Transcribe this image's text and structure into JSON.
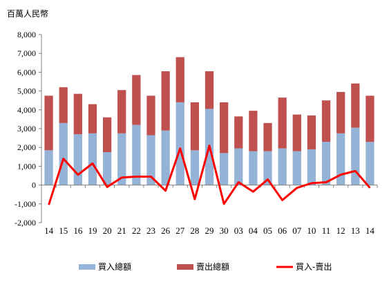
{
  "chart_data": {
    "type": "bar",
    "stacked": true,
    "unit_label": "百萬人民幣",
    "title": "",
    "xlabel": "",
    "ylabel": "",
    "ylim": [
      -2000,
      8000
    ],
    "yticks": [
      -2000,
      -1000,
      0,
      1000,
      2000,
      3000,
      4000,
      5000,
      6000,
      7000,
      8000
    ],
    "ytick_labels": [
      "-2,000",
      "-1,000",
      "0",
      "1,000",
      "2,000",
      "3,000",
      "4,000",
      "5,000",
      "6,000",
      "7,000",
      "8,000"
    ],
    "grid": false,
    "legend_position": "bottom",
    "categories": [
      "14",
      "15",
      "16",
      "19",
      "20",
      "21",
      "22",
      "23",
      "26",
      "27",
      "28",
      "29",
      "30",
      "03",
      "04",
      "05",
      "06",
      "07",
      "10",
      "11",
      "12",
      "13",
      "14"
    ],
    "series": [
      {
        "name": "買入總額",
        "kind": "bar",
        "color": "#95b3d7",
        "values": [
          1850,
          3300,
          2700,
          2750,
          1750,
          2750,
          3200,
          2650,
          2900,
          4400,
          1850,
          4050,
          1700,
          1950,
          1800,
          1800,
          1950,
          1800,
          1900,
          2300,
          2750,
          3050,
          2300
        ]
      },
      {
        "name": "賣出總額",
        "kind": "bar",
        "color": "#c0504d",
        "values": [
          2900,
          1900,
          2150,
          1550,
          1850,
          2300,
          2650,
          2100,
          3150,
          2400,
          2550,
          2000,
          2700,
          1700,
          2150,
          1500,
          2700,
          1950,
          1800,
          2200,
          2200,
          2350,
          2450
        ]
      },
      {
        "name": "買入-賣出",
        "kind": "line",
        "color": "#ff0000",
        "values": [
          -1050,
          1400,
          550,
          1150,
          -100,
          400,
          450,
          450,
          -300,
          1950,
          -750,
          2100,
          -1000,
          150,
          -350,
          300,
          -800,
          -150,
          100,
          150,
          550,
          750,
          -150
        ]
      }
    ]
  }
}
